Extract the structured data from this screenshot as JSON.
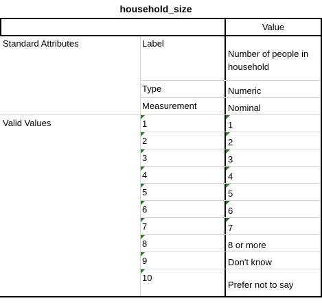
{
  "table": {
    "title": "household_size",
    "header": {
      "value_col": "Value"
    },
    "standard_attributes": {
      "section_label": "Standard Attributes",
      "rows": [
        {
          "attribute": "Label",
          "value": "Number of people in household"
        },
        {
          "attribute": "Type",
          "value": "Numeric"
        },
        {
          "attribute": "Measurement",
          "value": "Nominal"
        }
      ]
    },
    "valid_values": {
      "section_label": "Valid Values",
      "rows": [
        {
          "code": "1",
          "label": "1"
        },
        {
          "code": "2",
          "label": "2"
        },
        {
          "code": "3",
          "label": "3"
        },
        {
          "code": "4",
          "label": "4"
        },
        {
          "code": "5",
          "label": "5"
        },
        {
          "code": "6",
          "label": "6"
        },
        {
          "code": "7",
          "label": "7"
        },
        {
          "code": "8",
          "label": "8 or more"
        },
        {
          "code": "9",
          "label": "Don't know"
        },
        {
          "code": "10",
          "label": "Prefer not to say"
        }
      ]
    },
    "colors": {
      "border": "#000000",
      "gridline": "#d4d4d4",
      "marker": "#2a7a2a"
    }
  }
}
